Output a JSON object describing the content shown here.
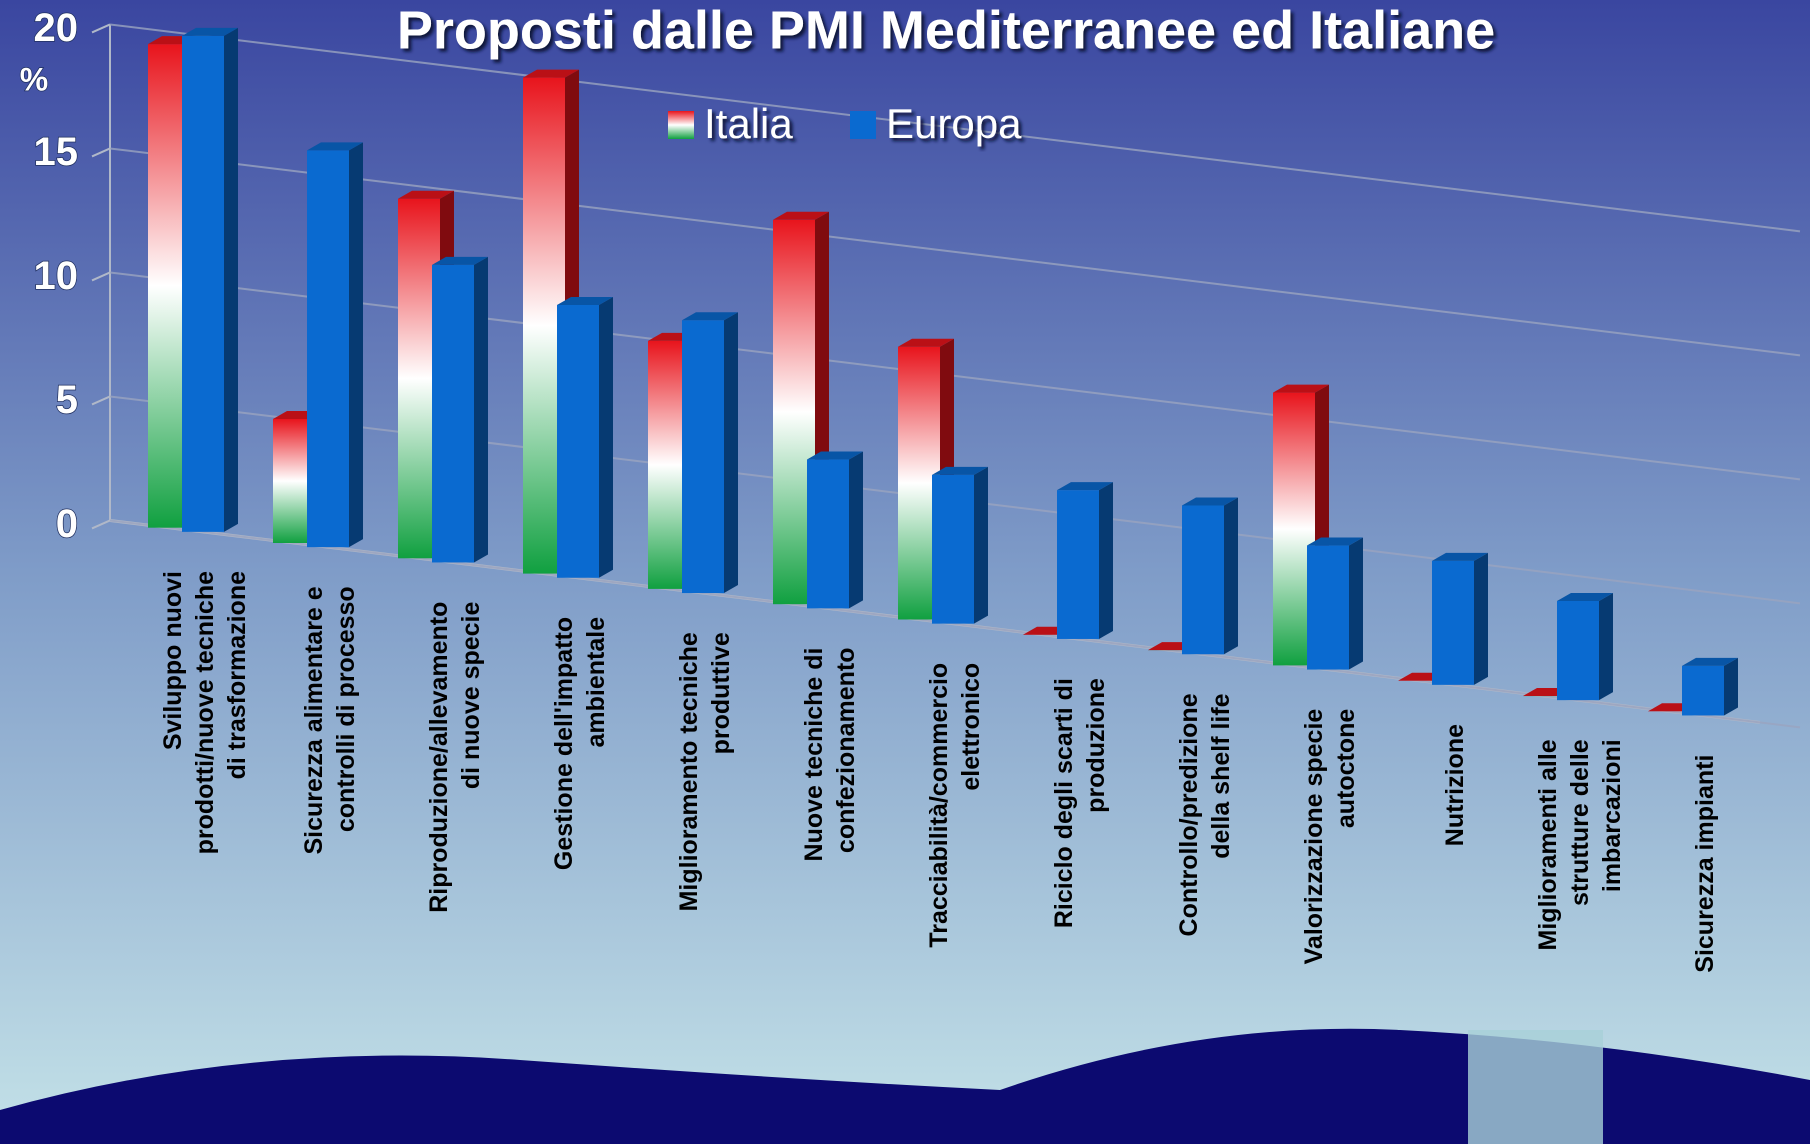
{
  "chart_data": {
    "type": "bar3d",
    "title": "Proposti dalle PMI  Mediterranee ed Italiane",
    "y_label": "%",
    "categories": [
      "Sviluppo nuovi prodotti/nuove tecniche di trasformazione",
      "Sicurezza alimentare e controlli di processo",
      "Riproduzione/allevamento di nuove specie",
      "Gestione dell'impatto ambientale",
      "Miglioramento tecniche produttive",
      "Nuove tecniche di confezionamento",
      "Tracciabilità/commercio elettronico",
      "Riciclo degli scarti di produzione",
      "Controllo/predizione della shelf life",
      "Valorizzazione specie autoctone",
      "Nutrizione",
      "Miglioramenti alle strutture delle imbarcazioni",
      "Sicurezza impianti"
    ],
    "series": [
      {
        "name": "Italia",
        "color": "#e8141c",
        "values": [
          19.5,
          5,
          14.5,
          20,
          10,
          15.5,
          11,
          0,
          0,
          11,
          0,
          0,
          0
        ]
      },
      {
        "name": "Europa",
        "color": "#0a6ad0",
        "values": [
          20,
          16,
          12,
          11,
          11,
          6,
          6,
          6,
          6,
          5,
          5,
          4,
          2
        ]
      }
    ],
    "ylim": [
      0,
      20
    ],
    "yticks": [
      0,
      5,
      10,
      15,
      20
    ],
    "grid": true
  }
}
